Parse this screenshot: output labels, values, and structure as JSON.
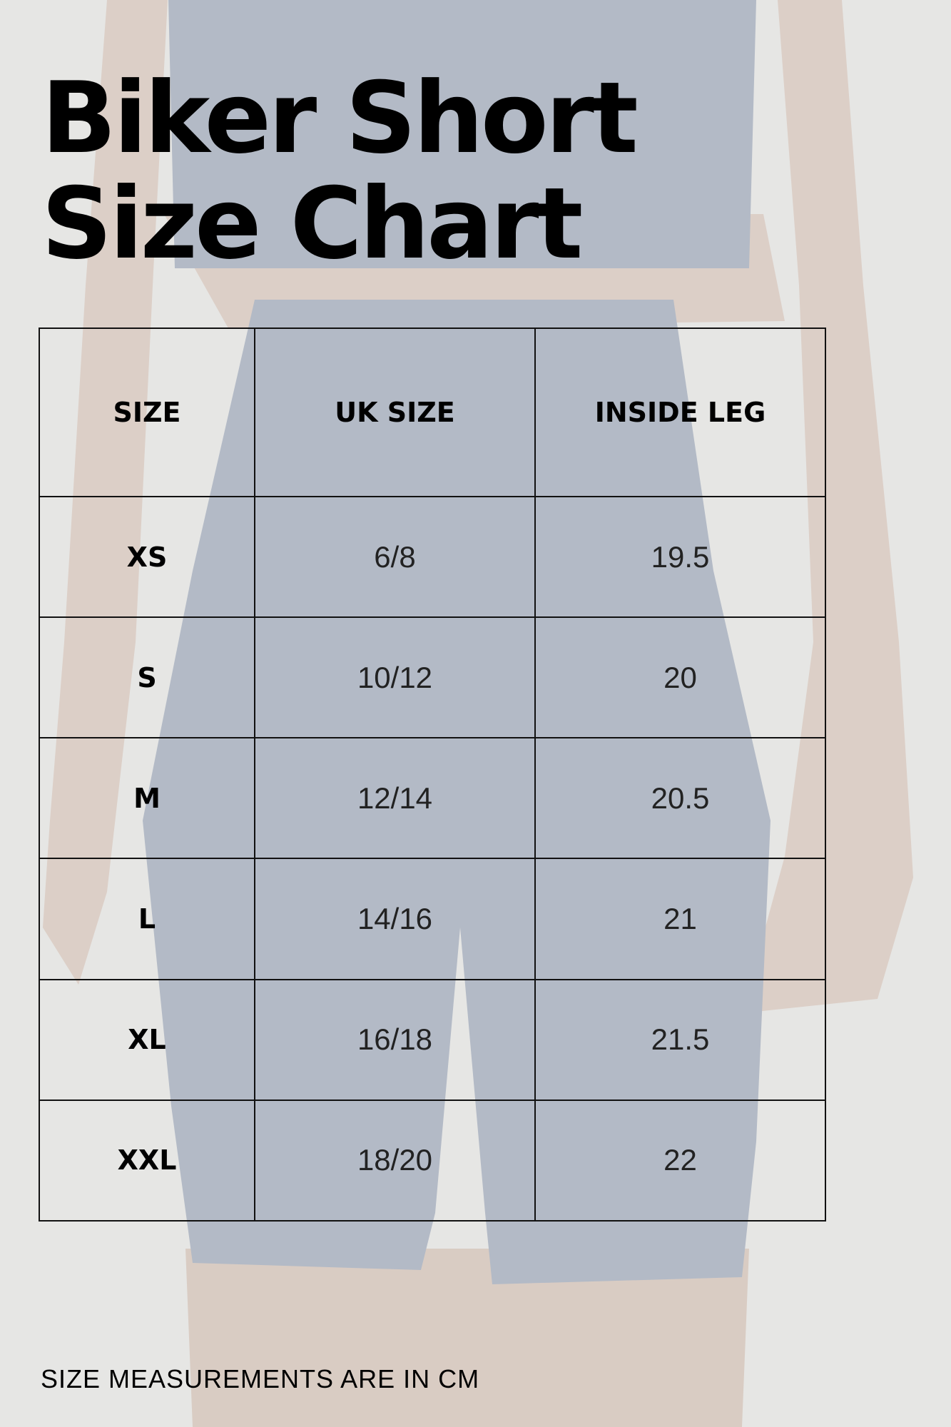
{
  "title_line1": "Biker Short",
  "title_line2": "Size Chart",
  "table": {
    "headers": [
      "SIZE",
      "UK SIZE",
      "INSIDE LEG"
    ],
    "rows": [
      [
        "XS",
        "6/8",
        "19.5"
      ],
      [
        "S",
        "10/12",
        "20"
      ],
      [
        "M",
        "12/14",
        "20.5"
      ],
      [
        "L",
        "14/16",
        "21"
      ],
      [
        "XL",
        "16/18",
        "21.5"
      ],
      [
        "XXL",
        "18/20",
        "22"
      ]
    ]
  },
  "footer": "SIZE MEASUREMENTS ARE IN CM",
  "colors": {
    "background": "#e6e6e4",
    "garment": "#b3bac6",
    "skin": "#dccfc7",
    "text": "#000000"
  }
}
